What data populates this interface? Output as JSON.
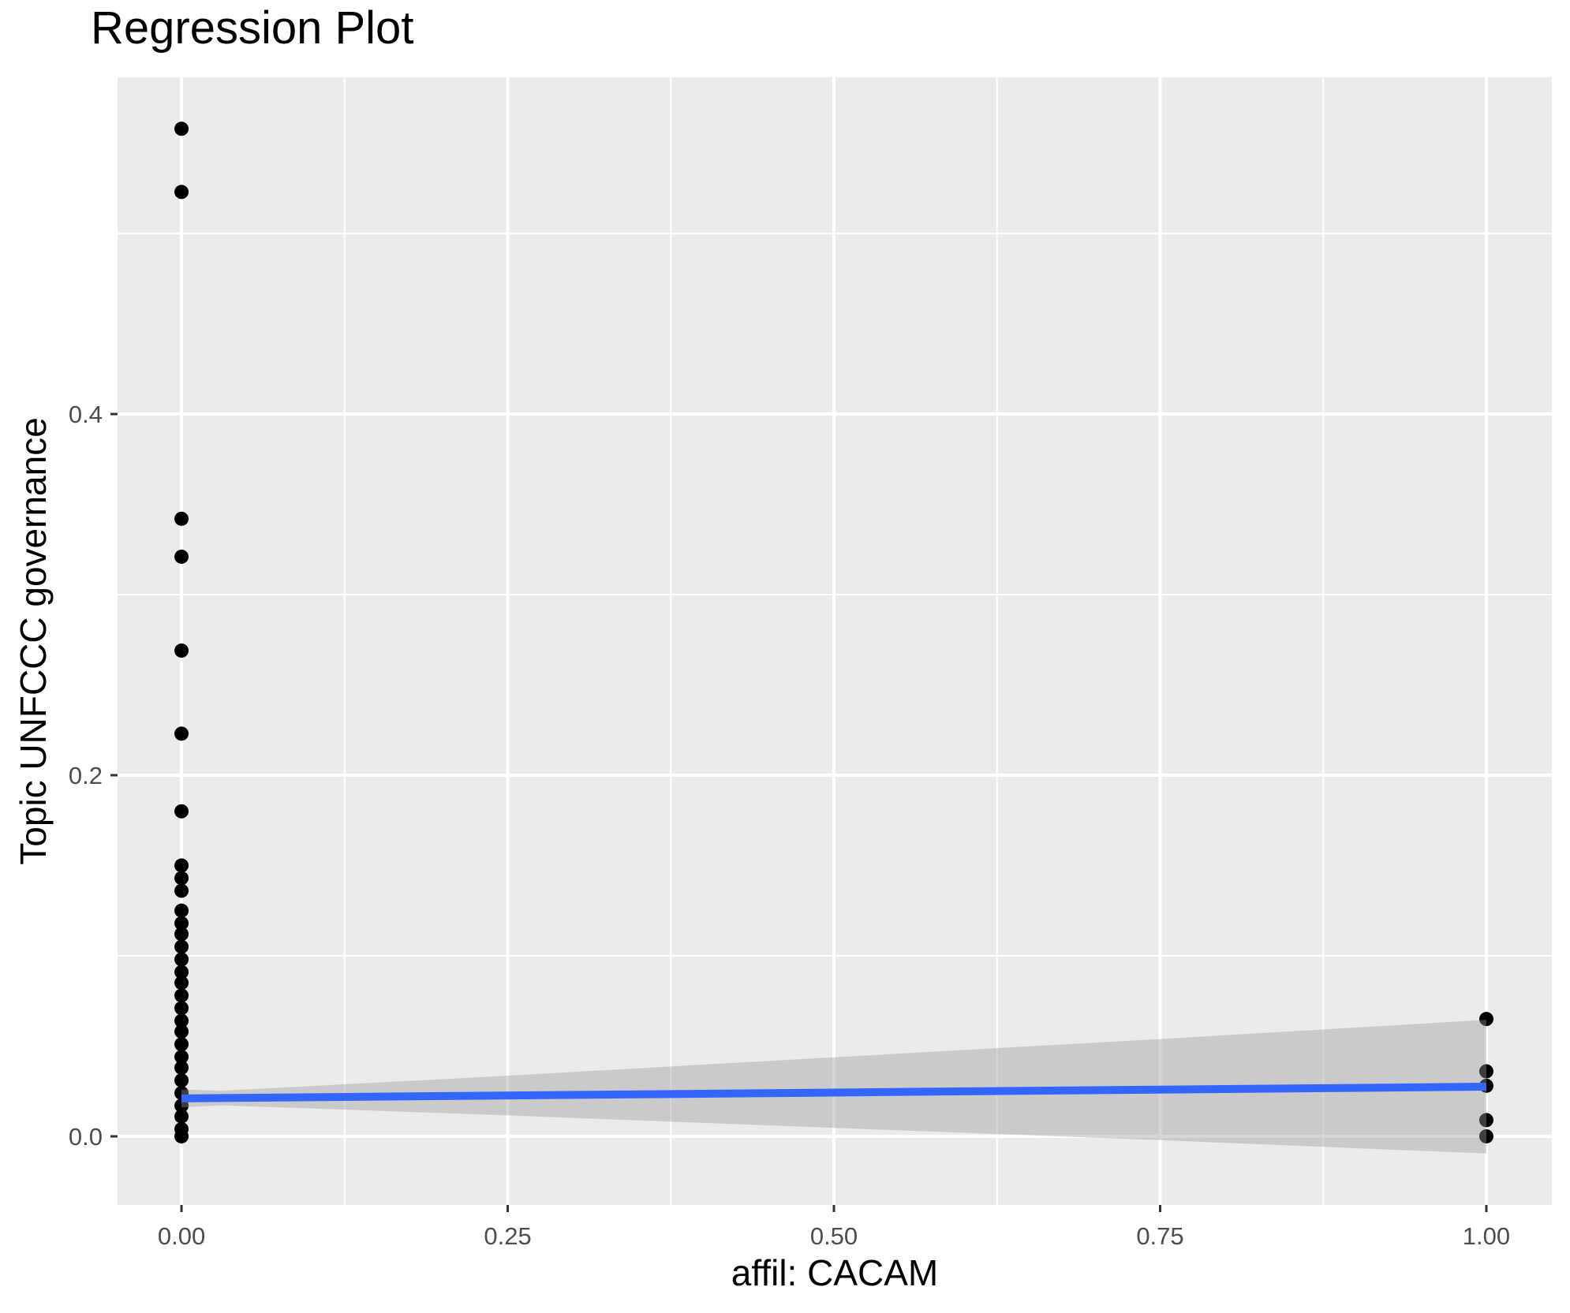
{
  "figure": {
    "title": "Regression Plot"
  },
  "chart_data": {
    "type": "scatter",
    "title": "Regression Plot",
    "xlabel": "affil: CACAM",
    "ylabel": "Topic UNFCCC governance",
    "xlim": [
      -0.049,
      1.0502
    ],
    "ylim": [
      -0.038,
      0.5865
    ],
    "grid": "major-and-minor",
    "legend": "none",
    "x_ticks": [
      {
        "value": 0.0,
        "label": "0.00"
      },
      {
        "value": 0.25,
        "label": "0.25"
      },
      {
        "value": 0.5,
        "label": "0.50"
      },
      {
        "value": 0.75,
        "label": "0.75"
      },
      {
        "value": 1.0,
        "label": "1.00"
      }
    ],
    "y_ticks": [
      {
        "value": 0.0,
        "label": "0.0"
      },
      {
        "value": 0.2,
        "label": "0.2"
      },
      {
        "value": 0.4,
        "label": "0.4"
      }
    ],
    "x_minor": [
      0.125,
      0.375,
      0.625,
      0.875
    ],
    "y_minor": [
      0.1,
      0.3,
      0.5
    ],
    "series": [
      {
        "name": "observations",
        "kind": "points",
        "color": "#000000",
        "points": [
          {
            "x": 0,
            "y": 0.558
          },
          {
            "x": 0,
            "y": 0.523
          },
          {
            "x": 0,
            "y": 0.342
          },
          {
            "x": 0,
            "y": 0.321
          },
          {
            "x": 0,
            "y": 0.269
          },
          {
            "x": 0,
            "y": 0.223
          },
          {
            "x": 0,
            "y": 0.18
          },
          {
            "x": 0,
            "y": 0.15
          },
          {
            "x": 0,
            "y": 0.143
          },
          {
            "x": 0,
            "y": 0.136
          },
          {
            "x": 0,
            "y": 0.125
          },
          {
            "x": 0,
            "y": 0.118
          },
          {
            "x": 0,
            "y": 0.112
          },
          {
            "x": 0,
            "y": 0.105
          },
          {
            "x": 0,
            "y": 0.098
          },
          {
            "x": 0,
            "y": 0.091
          },
          {
            "x": 0,
            "y": 0.085
          },
          {
            "x": 0,
            "y": 0.078
          },
          {
            "x": 0,
            "y": 0.071
          },
          {
            "x": 0,
            "y": 0.064
          },
          {
            "x": 0,
            "y": 0.058
          },
          {
            "x": 0,
            "y": 0.051
          },
          {
            "x": 0,
            "y": 0.044
          },
          {
            "x": 0,
            "y": 0.038
          },
          {
            "x": 0,
            "y": 0.031
          },
          {
            "x": 0,
            "y": 0.024
          },
          {
            "x": 0,
            "y": 0.017
          },
          {
            "x": 0,
            "y": 0.011
          },
          {
            "x": 0,
            "y": 0.004
          },
          {
            "x": 0,
            "y": 0.0
          },
          {
            "x": 1,
            "y": 0.065
          },
          {
            "x": 1,
            "y": 0.036
          },
          {
            "x": 1,
            "y": 0.028
          },
          {
            "x": 1,
            "y": 0.009
          },
          {
            "x": 1,
            "y": 0.0
          }
        ]
      },
      {
        "name": "regression-fit",
        "kind": "line",
        "color": "#3366FF",
        "x": [
          0,
          1
        ],
        "y": [
          0.021,
          0.0275
        ]
      },
      {
        "name": "confidence-band",
        "kind": "band",
        "color": "rgba(153,153,153,0.40)",
        "x": [
          0.0,
          0.03,
          0.25,
          0.5,
          0.75,
          1.0
        ],
        "top": [
          0.026,
          0.0252,
          0.0336,
          0.0438,
          0.0539,
          0.0645
        ],
        "bottom": [
          0.016,
          0.0172,
          0.0116,
          0.0047,
          -0.0021,
          -0.0095
        ]
      }
    ],
    "colors": {
      "background": "#FFFFFF",
      "panel": "#EBEBEB",
      "grid": "#FFFFFF",
      "point": "#000000",
      "smooth_line": "#3366FF",
      "band": "rgba(153,153,153,0.40)",
      "tick_label": "#4D4D4D",
      "tick_mark": "#333333",
      "text": "#000000"
    }
  }
}
